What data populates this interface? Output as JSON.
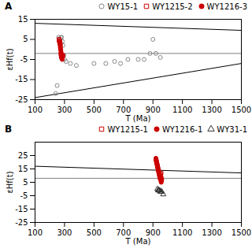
{
  "chart_data": [
    {
      "type": "scatter",
      "title": "A",
      "xlabel": "T (Ma)",
      "ylabel": "εHf(t)",
      "xlim": [
        100,
        1500
      ],
      "ylim": [
        -25,
        15
      ],
      "xticks": [
        100,
        300,
        500,
        700,
        900,
        1100,
        1300,
        1500
      ],
      "yticks": [
        -25,
        -15,
        -5,
        5,
        15
      ],
      "grid": false,
      "legend": "upper right",
      "reference_lines": [
        {
          "y": -2,
          "color": "gray"
        }
      ],
      "lines": [
        {
          "x": [
            100,
            1500
          ],
          "values": [
            13,
            9.5
          ],
          "color": "black"
        },
        {
          "x": [
            100,
            1500
          ],
          "values": [
            -24,
            -7
          ],
          "color": "black"
        }
      ],
      "series": [
        {
          "name": "WY15-1",
          "marker": "circle-open",
          "color": "#888888",
          "x": [
            240,
            250,
            260,
            265,
            270,
            275,
            280,
            285,
            290,
            295,
            300,
            310,
            340,
            380,
            500,
            580,
            640,
            680,
            730,
            800,
            840,
            880,
            900,
            920,
            950
          ],
          "values": [
            -22,
            -18,
            6,
            5,
            4,
            6,
            6,
            4,
            2,
            -3,
            -5,
            -6,
            -7,
            -8,
            -7,
            -7,
            -6,
            -7,
            -5,
            -5,
            -5,
            -2,
            5,
            -2,
            -4
          ]
        },
        {
          "name": "WY1215-2",
          "marker": "square-open",
          "color": "#cc0000",
          "x": [
            263,
            265,
            267,
            268,
            270,
            271,
            273,
            274,
            276,
            278,
            280,
            282,
            284,
            286,
            288
          ],
          "values": [
            5,
            5,
            4,
            4,
            3,
            3,
            2,
            0,
            -1,
            -2,
            -3,
            -4,
            -4,
            -3,
            -3
          ]
        },
        {
          "name": "WY1216-3",
          "marker": "circle",
          "color": "#cc0000",
          "x": [
            263,
            265,
            267,
            268,
            270,
            271,
            273,
            274,
            276,
            278,
            280,
            282,
            284,
            286,
            288,
            290
          ],
          "values": [
            4,
            4,
            3,
            3,
            2,
            1,
            0,
            -2,
            -3,
            -4,
            -4,
            -4,
            -5,
            -4,
            -3,
            -3
          ]
        }
      ]
    },
    {
      "type": "scatter",
      "title": "B",
      "xlabel": "T (Ma)",
      "ylabel": "εHf(t)",
      "xlim": [
        100,
        1500
      ],
      "ylim": [
        -25,
        35
      ],
      "xticks": [
        100,
        300,
        500,
        700,
        900,
        1100,
        1300,
        1500
      ],
      "yticks": [
        -25,
        -15,
        -5,
        5,
        15,
        25
      ],
      "grid": false,
      "legend": "upper right",
      "reference_lines": [
        {
          "y": 8,
          "color": "gray"
        }
      ],
      "lines": [
        {
          "x": [
            100,
            1500
          ],
          "values": [
            17,
            12
          ],
          "color": "black"
        }
      ],
      "series": [
        {
          "name": "WY1215-1",
          "marker": "square-open",
          "color": "#cc0000",
          "x": [
            920,
            922,
            924,
            926,
            928,
            930,
            932,
            934,
            936,
            938,
            940,
            942,
            944,
            946,
            948,
            950,
            952,
            954,
            956,
            958
          ],
          "values": [
            22,
            21,
            20,
            19,
            18,
            17,
            16,
            15,
            14,
            13,
            12,
            11,
            10,
            9,
            8,
            9,
            10,
            11,
            12,
            8
          ]
        },
        {
          "name": "WY1216-1",
          "marker": "circle",
          "color": "#cc0000",
          "x": [
            920,
            922,
            924,
            926,
            928,
            930,
            932,
            934,
            936,
            938,
            940,
            942,
            944,
            946,
            948,
            950,
            952,
            954,
            956,
            958,
            960
          ],
          "values": [
            23,
            22,
            21,
            20,
            19,
            18,
            17,
            16,
            15,
            14,
            13,
            12,
            11,
            10,
            9,
            8,
            7,
            6,
            5,
            6,
            7
          ]
        },
        {
          "name": "WY31-1",
          "marker": "triangle-open",
          "color": "#333333",
          "x": [
            930,
            935,
            938,
            940,
            945,
            950,
            955,
            960,
            970
          ],
          "values": [
            0,
            -1,
            -1,
            -1,
            -1,
            -2,
            -2,
            -2,
            -4
          ]
        }
      ]
    }
  ]
}
